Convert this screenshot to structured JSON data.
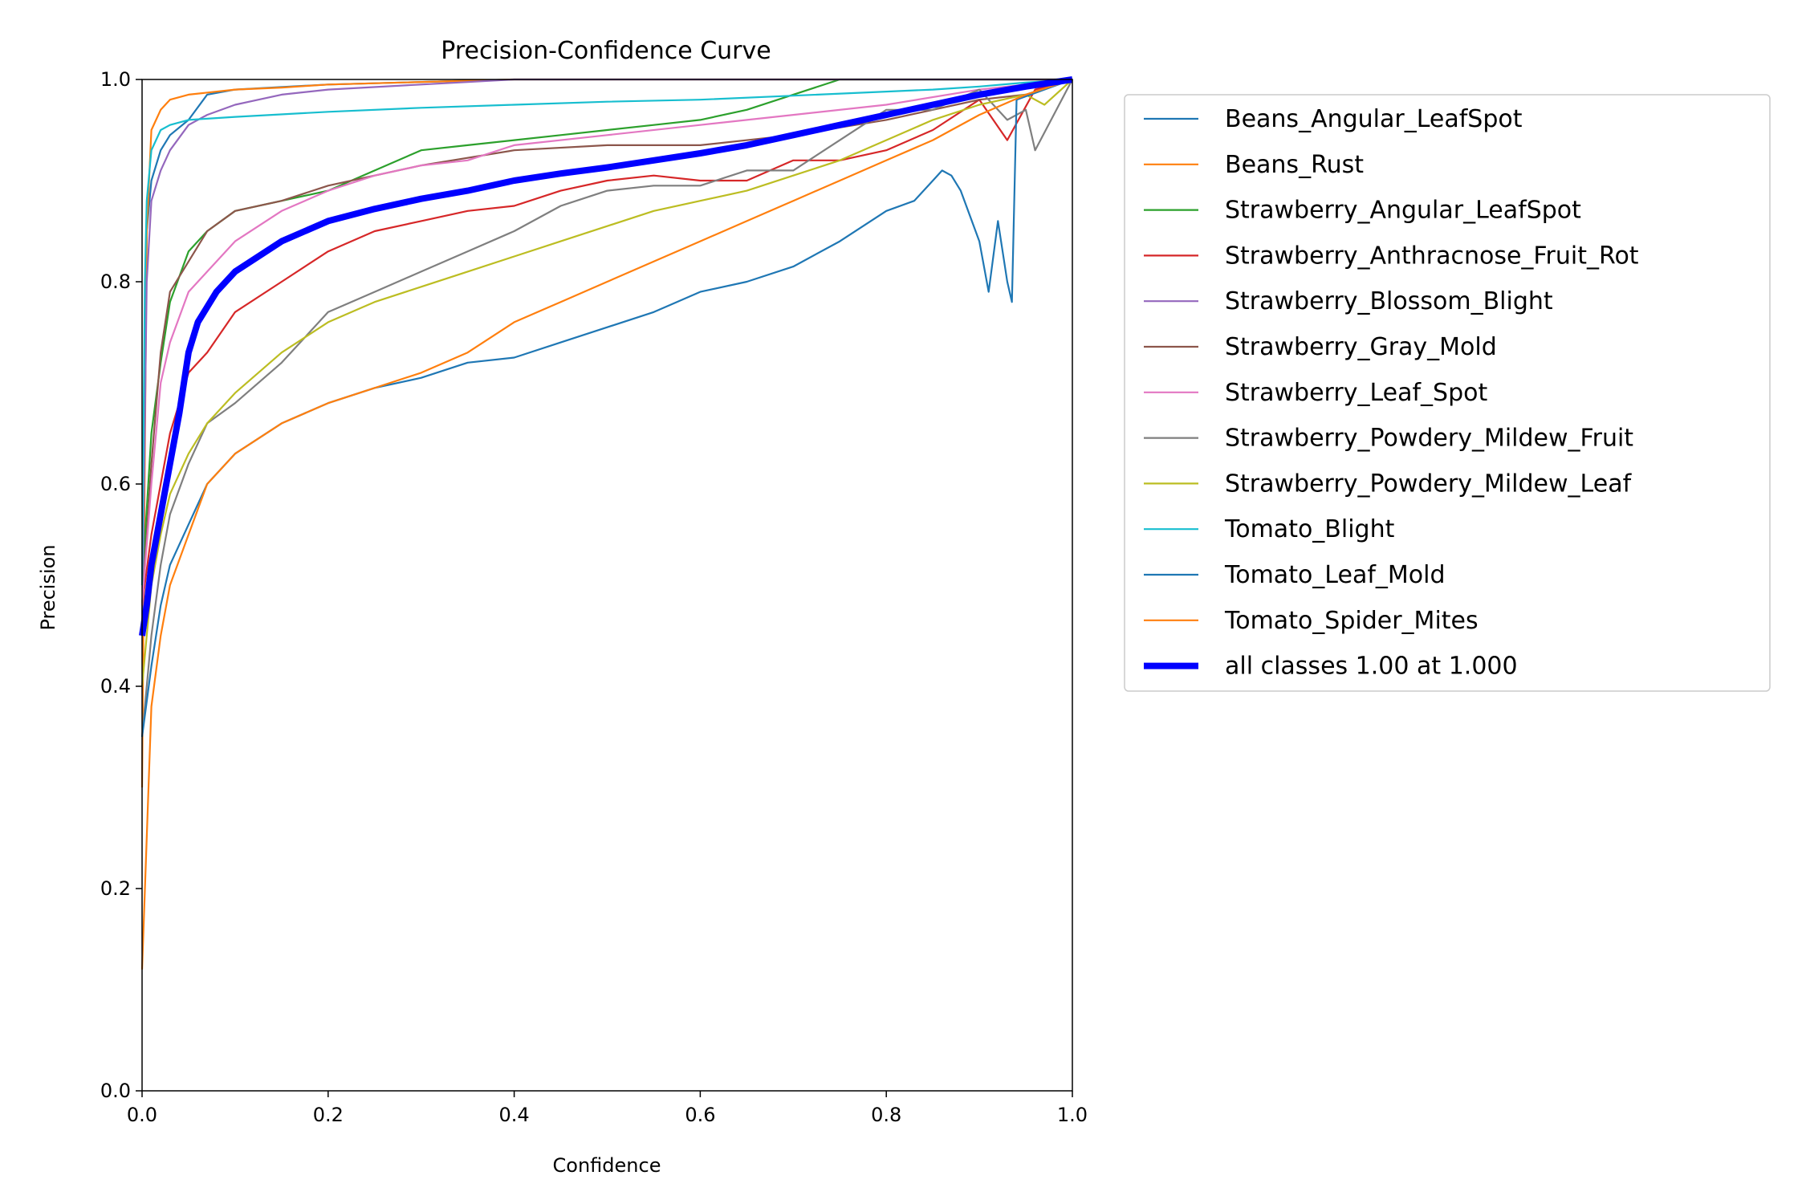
{
  "chart_data": {
    "type": "line",
    "title": "Precision-Confidence Curve",
    "xlabel": "Confidence",
    "ylabel": "Precision",
    "xlim": [
      0,
      1
    ],
    "ylim": [
      0,
      1
    ],
    "xticks": [
      "0.0",
      "0.2",
      "0.4",
      "0.6",
      "0.8",
      "1.0"
    ],
    "yticks": [
      "0.0",
      "0.2",
      "0.4",
      "0.6",
      "0.8",
      "1.0"
    ],
    "grid": false,
    "legend_position": "outside-right",
    "series": [
      {
        "name": "Beans_Angular_LeafSpot",
        "color": "#1f77b4",
        "width": "thin",
        "x": [
          0.0,
          0.005,
          0.01,
          0.02,
          0.03,
          0.05,
          0.07,
          0.1,
          0.2,
          0.4,
          0.6,
          0.75,
          0.8,
          1.0
        ],
        "y": [
          0.45,
          0.85,
          0.9,
          0.93,
          0.945,
          0.96,
          0.985,
          0.99,
          0.995,
          1.0,
          1.0,
          1.0,
          1.0,
          1.0
        ]
      },
      {
        "name": "Beans_Rust",
        "color": "#ff7f0e",
        "width": "thin",
        "x": [
          0.0,
          0.005,
          0.01,
          0.02,
          0.03,
          0.05,
          0.1,
          0.15,
          0.2,
          0.4,
          0.6,
          0.8,
          1.0
        ],
        "y": [
          0.3,
          0.85,
          0.95,
          0.97,
          0.98,
          0.985,
          0.99,
          0.992,
          0.995,
          1.0,
          1.0,
          1.0,
          1.0
        ]
      },
      {
        "name": "Strawberry_Angular_LeafSpot",
        "color": "#2ca02c",
        "width": "thin",
        "x": [
          0.0,
          0.01,
          0.02,
          0.03,
          0.05,
          0.07,
          0.1,
          0.15,
          0.2,
          0.25,
          0.3,
          0.35,
          0.4,
          0.45,
          0.5,
          0.55,
          0.6,
          0.65,
          0.7,
          0.75,
          0.8,
          1.0
        ],
        "y": [
          0.5,
          0.65,
          0.72,
          0.78,
          0.83,
          0.85,
          0.87,
          0.88,
          0.89,
          0.91,
          0.93,
          0.935,
          0.94,
          0.945,
          0.95,
          0.955,
          0.96,
          0.97,
          0.985,
          1.0,
          1.0,
          1.0
        ]
      },
      {
        "name": "Strawberry_Anthracnose_Fruit_Rot",
        "color": "#d62728",
        "width": "thin",
        "x": [
          0.0,
          0.01,
          0.02,
          0.03,
          0.05,
          0.07,
          0.1,
          0.15,
          0.2,
          0.25,
          0.3,
          0.35,
          0.4,
          0.45,
          0.5,
          0.55,
          0.6,
          0.65,
          0.7,
          0.75,
          0.8,
          0.85,
          0.9,
          0.93,
          0.96,
          1.0
        ],
        "y": [
          0.48,
          0.55,
          0.6,
          0.65,
          0.71,
          0.73,
          0.77,
          0.8,
          0.83,
          0.85,
          0.86,
          0.87,
          0.875,
          0.89,
          0.9,
          0.905,
          0.9,
          0.9,
          0.92,
          0.92,
          0.93,
          0.95,
          0.98,
          0.94,
          0.99,
          1.0
        ]
      },
      {
        "name": "Strawberry_Blossom_Blight",
        "color": "#9467bd",
        "width": "thin",
        "x": [
          0.0,
          0.005,
          0.01,
          0.02,
          0.03,
          0.05,
          0.07,
          0.1,
          0.15,
          0.2,
          0.3,
          0.4,
          0.6,
          0.8,
          1.0
        ],
        "y": [
          0.45,
          0.8,
          0.88,
          0.91,
          0.93,
          0.955,
          0.965,
          0.975,
          0.985,
          0.99,
          0.995,
          1.0,
          1.0,
          1.0,
          1.0
        ]
      },
      {
        "name": "Strawberry_Gray_Mold",
        "color": "#8c564b",
        "width": "thin",
        "x": [
          0.0,
          0.01,
          0.02,
          0.03,
          0.05,
          0.07,
          0.1,
          0.15,
          0.2,
          0.25,
          0.3,
          0.4,
          0.5,
          0.6,
          0.7,
          0.8,
          0.85,
          0.9,
          0.95,
          1.0
        ],
        "y": [
          0.48,
          0.62,
          0.73,
          0.79,
          0.82,
          0.85,
          0.87,
          0.88,
          0.895,
          0.905,
          0.915,
          0.93,
          0.935,
          0.935,
          0.945,
          0.96,
          0.97,
          0.98,
          0.985,
          1.0
        ]
      },
      {
        "name": "Strawberry_Leaf_Spot",
        "color": "#e377c2",
        "width": "thin",
        "x": [
          0.0,
          0.01,
          0.02,
          0.03,
          0.05,
          0.07,
          0.1,
          0.15,
          0.2,
          0.25,
          0.3,
          0.35,
          0.4,
          0.5,
          0.6,
          0.7,
          0.8,
          0.9,
          0.95,
          1.0
        ],
        "y": [
          0.48,
          0.6,
          0.7,
          0.74,
          0.79,
          0.81,
          0.84,
          0.87,
          0.89,
          0.905,
          0.915,
          0.92,
          0.935,
          0.945,
          0.955,
          0.965,
          0.975,
          0.99,
          0.995,
          1.0
        ]
      },
      {
        "name": "Strawberry_Powdery_Mildew_Fruit",
        "color": "#7f7f7f",
        "width": "thin",
        "x": [
          0.0,
          0.01,
          0.02,
          0.03,
          0.05,
          0.07,
          0.1,
          0.15,
          0.2,
          0.25,
          0.3,
          0.35,
          0.4,
          0.45,
          0.5,
          0.55,
          0.6,
          0.65,
          0.7,
          0.75,
          0.8,
          0.85,
          0.9,
          0.93,
          0.95,
          0.96,
          1.0
        ],
        "y": [
          0.35,
          0.45,
          0.52,
          0.57,
          0.62,
          0.66,
          0.68,
          0.72,
          0.77,
          0.79,
          0.81,
          0.83,
          0.85,
          0.875,
          0.89,
          0.895,
          0.895,
          0.91,
          0.91,
          0.94,
          0.97,
          0.97,
          0.99,
          0.96,
          0.97,
          0.93,
          1.0
        ]
      },
      {
        "name": "Strawberry_Powdery_Mildew_Leaf",
        "color": "#bcbd22",
        "width": "thin",
        "x": [
          0.0,
          0.01,
          0.02,
          0.03,
          0.05,
          0.07,
          0.1,
          0.15,
          0.2,
          0.25,
          0.3,
          0.35,
          0.4,
          0.45,
          0.5,
          0.55,
          0.6,
          0.65,
          0.7,
          0.75,
          0.8,
          0.85,
          0.9,
          0.95,
          0.97,
          1.0
        ],
        "y": [
          0.4,
          0.5,
          0.55,
          0.59,
          0.63,
          0.66,
          0.69,
          0.73,
          0.76,
          0.78,
          0.795,
          0.81,
          0.825,
          0.84,
          0.855,
          0.87,
          0.88,
          0.89,
          0.905,
          0.92,
          0.94,
          0.96,
          0.975,
          0.985,
          0.975,
          1.0
        ]
      },
      {
        "name": "Tomato_Blight",
        "color": "#17becf",
        "width": "thin",
        "x": [
          0.0,
          0.003,
          0.005,
          0.01,
          0.02,
          0.03,
          0.05,
          0.1,
          0.2,
          0.3,
          0.4,
          0.5,
          0.6,
          0.7,
          0.8,
          0.85,
          0.9,
          0.95,
          1.0
        ],
        "y": [
          0.5,
          0.8,
          0.88,
          0.93,
          0.95,
          0.955,
          0.96,
          0.963,
          0.968,
          0.972,
          0.975,
          0.978,
          0.98,
          0.984,
          0.988,
          0.99,
          0.993,
          0.997,
          1.0
        ]
      },
      {
        "name": "Tomato_Leaf_Mold",
        "color": "#1f77b4",
        "width": "thin",
        "x": [
          0.0,
          0.01,
          0.02,
          0.03,
          0.05,
          0.07,
          0.1,
          0.15,
          0.2,
          0.25,
          0.3,
          0.35,
          0.4,
          0.45,
          0.5,
          0.55,
          0.6,
          0.65,
          0.7,
          0.75,
          0.8,
          0.83,
          0.85,
          0.86,
          0.87,
          0.88,
          0.9,
          0.91,
          0.92,
          0.93,
          0.935,
          0.94,
          1.0
        ],
        "y": [
          0.35,
          0.42,
          0.48,
          0.52,
          0.56,
          0.6,
          0.63,
          0.66,
          0.68,
          0.695,
          0.705,
          0.72,
          0.725,
          0.74,
          0.755,
          0.77,
          0.79,
          0.8,
          0.815,
          0.84,
          0.87,
          0.88,
          0.9,
          0.91,
          0.905,
          0.89,
          0.84,
          0.79,
          0.86,
          0.8,
          0.78,
          0.98,
          1.0
        ]
      },
      {
        "name": "Tomato_Spider_Mites",
        "color": "#ff7f0e",
        "width": "thin",
        "x": [
          0.0,
          0.01,
          0.02,
          0.03,
          0.05,
          0.07,
          0.1,
          0.15,
          0.2,
          0.25,
          0.3,
          0.35,
          0.4,
          0.45,
          0.5,
          0.55,
          0.6,
          0.65,
          0.7,
          0.75,
          0.8,
          0.85,
          0.9,
          0.95,
          1.0
        ],
        "y": [
          0.12,
          0.38,
          0.45,
          0.5,
          0.55,
          0.6,
          0.63,
          0.66,
          0.68,
          0.695,
          0.71,
          0.73,
          0.76,
          0.78,
          0.8,
          0.82,
          0.84,
          0.86,
          0.88,
          0.9,
          0.92,
          0.94,
          0.965,
          0.985,
          1.0
        ]
      },
      {
        "name": "all classes 1.00 at 1.000",
        "color": "#0000ff",
        "width": "thick",
        "x": [
          0.0,
          0.005,
          0.01,
          0.02,
          0.03,
          0.04,
          0.05,
          0.06,
          0.08,
          0.1,
          0.15,
          0.2,
          0.25,
          0.3,
          0.35,
          0.4,
          0.45,
          0.5,
          0.55,
          0.6,
          0.65,
          0.7,
          0.75,
          0.8,
          0.85,
          0.9,
          0.95,
          1.0
        ],
        "y": [
          0.45,
          0.48,
          0.52,
          0.57,
          0.62,
          0.67,
          0.73,
          0.76,
          0.79,
          0.81,
          0.84,
          0.86,
          0.872,
          0.882,
          0.89,
          0.9,
          0.907,
          0.913,
          0.92,
          0.927,
          0.935,
          0.945,
          0.955,
          0.965,
          0.975,
          0.985,
          0.993,
          1.0
        ]
      }
    ]
  }
}
